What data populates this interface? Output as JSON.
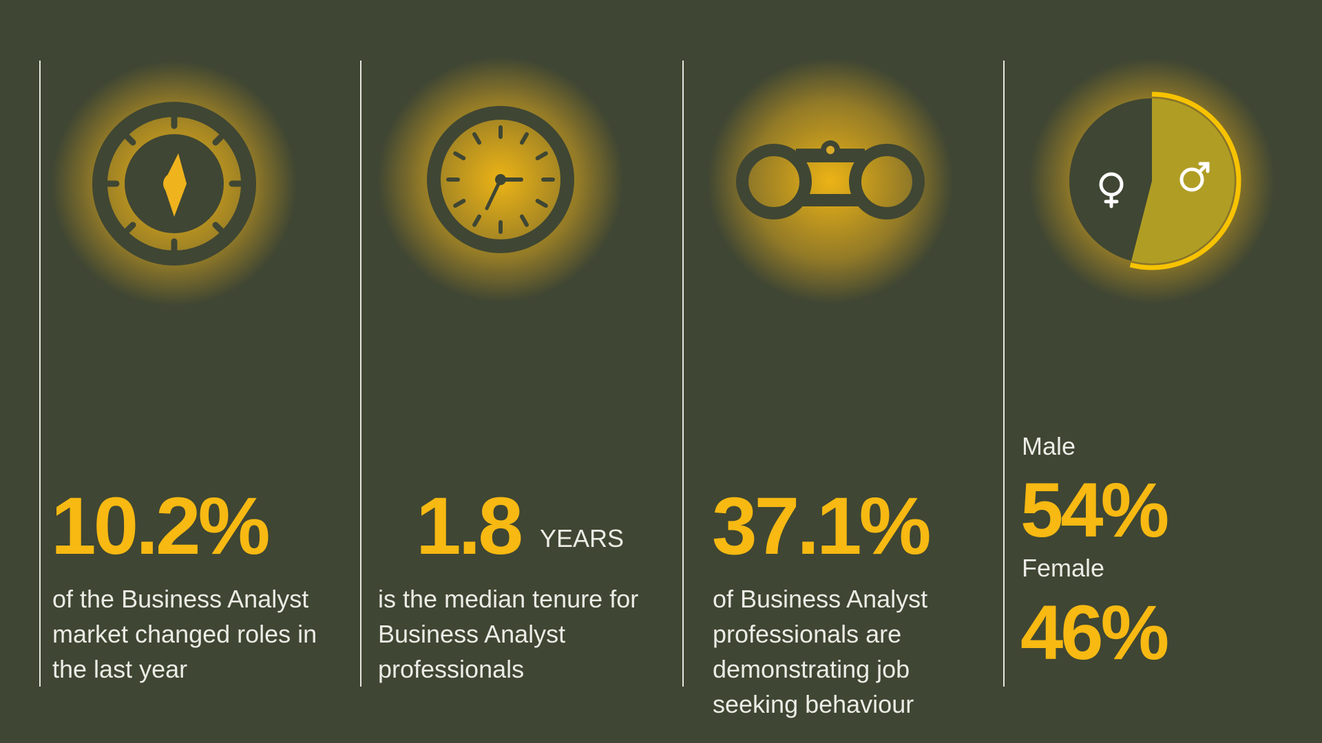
{
  "colors": {
    "background": "#3f4633",
    "accent": "#f7b912",
    "male_fill": "#b09d24"
  },
  "stats": [
    {
      "icon": "compass-icon",
      "value": "10.2%",
      "description": [
        "of the Business Analyst",
        "market changed roles in",
        "the last year"
      ]
    },
    {
      "icon": "clock-icon",
      "value": "1.8",
      "unit": "YEARS",
      "description": [
        "is the median tenure for",
        "Business Analyst",
        "professionals"
      ]
    },
    {
      "icon": "binoculars-icon",
      "value": "37.1%",
      "description": [
        "of Business Analyst",
        "professionals are",
        "demonstrating job",
        "seeking behaviour"
      ]
    },
    {
      "icon": "gender-pie-icon",
      "male_label": "Male",
      "male_value": "54%",
      "female_label": "Female",
      "female_value": "46%",
      "male_percent": 54,
      "female_percent": 46
    }
  ]
}
